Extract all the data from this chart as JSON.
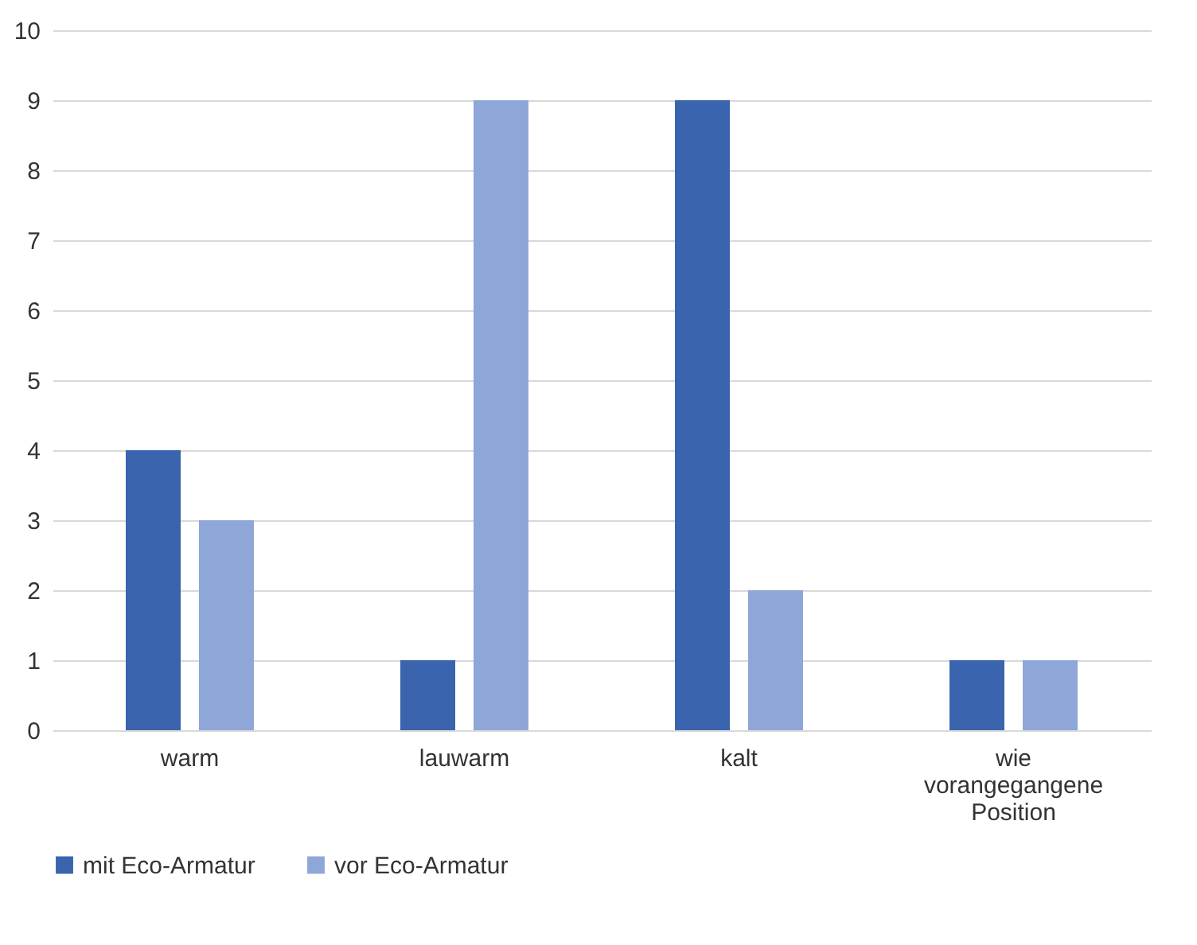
{
  "chart_data": {
    "type": "bar",
    "categories": [
      "warm",
      "lauwarm",
      "kalt",
      "wie vorangegangene Position"
    ],
    "series": [
      {
        "name": "mit Eco-Armatur",
        "color": "#3a64ae",
        "values": [
          4,
          1,
          9,
          1
        ]
      },
      {
        "name": "vor Eco-Armatur",
        "color": "#8fa7d8",
        "values": [
          3,
          9,
          2,
          1
        ]
      }
    ],
    "ylim": [
      0,
      10
    ],
    "yticks": [
      0,
      1,
      2,
      3,
      4,
      5,
      6,
      7,
      8,
      9,
      10
    ],
    "grid": "y",
    "legend": "bottom"
  }
}
